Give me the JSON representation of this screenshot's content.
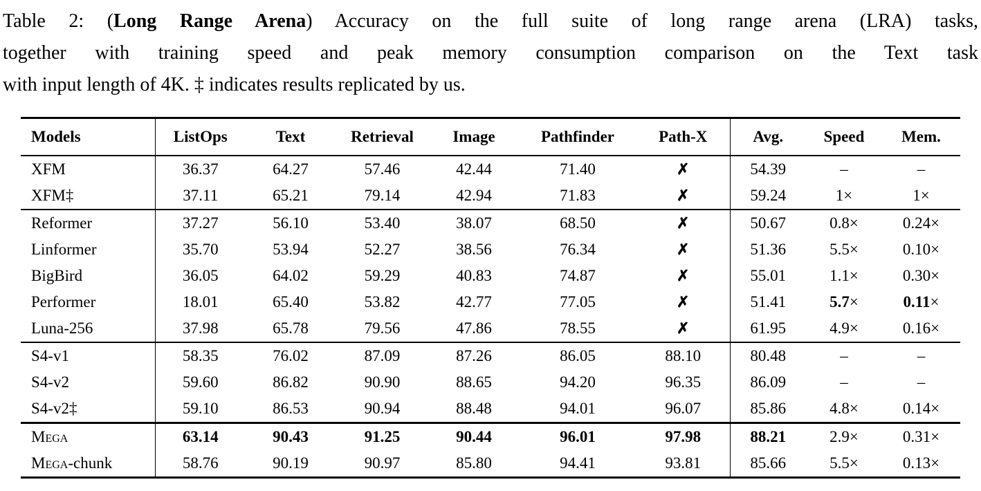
{
  "caption": {
    "line1_pre": "Table 2: (",
    "line1_bold": "Long Range Arena",
    "line1_post": ") Accuracy on the full suite of long range arena (LRA) tasks,",
    "line2": "together with training speed and peak memory consumption comparison on the Text task",
    "line3": "with input length of 4K. ‡ indicates results replicated by us."
  },
  "table": {
    "columns": [
      {
        "key": "models",
        "label": "Models"
      },
      {
        "key": "listops",
        "label": "ListOps"
      },
      {
        "key": "text",
        "label": "Text"
      },
      {
        "key": "retrieval",
        "label": "Retrieval"
      },
      {
        "key": "image",
        "label": "Image"
      },
      {
        "key": "pathfinder",
        "label": "Pathfinder"
      },
      {
        "key": "pathx",
        "label": "Path-X"
      },
      {
        "key": "avg",
        "label": "Avg."
      },
      {
        "key": "speed",
        "label": "Speed"
      },
      {
        "key": "mem",
        "label": "Mem."
      }
    ],
    "cross_mark": "✗",
    "dash_mark": "–",
    "groups": [
      {
        "rows": [
          {
            "model": "XFM",
            "sc": false,
            "suffix": "",
            "cells": [
              "36.37",
              "64.27",
              "57.46",
              "42.44",
              "71.40",
              "✗",
              "54.39",
              "–",
              "–"
            ],
            "bold": []
          },
          {
            "model": "XFM‡",
            "sc": false,
            "suffix": "",
            "cells": [
              "37.11",
              "65.21",
              "79.14",
              "42.94",
              "71.83",
              "✗",
              "59.24",
              "1×",
              "1×"
            ],
            "bold": []
          }
        ]
      },
      {
        "rows": [
          {
            "model": "Reformer",
            "sc": false,
            "suffix": "",
            "cells": [
              "37.27",
              "56.10",
              "53.40",
              "38.07",
              "68.50",
              "✗",
              "50.67",
              "0.8×",
              "0.24×"
            ],
            "bold": []
          },
          {
            "model": "Linformer",
            "sc": false,
            "suffix": "",
            "cells": [
              "35.70",
              "53.94",
              "52.27",
              "38.56",
              "76.34",
              "✗",
              "51.36",
              "5.5×",
              "0.10×"
            ],
            "bold": []
          },
          {
            "model": "BigBird",
            "sc": false,
            "suffix": "",
            "cells": [
              "36.05",
              "64.02",
              "59.29",
              "40.83",
              "74.87",
              "✗",
              "55.01",
              "1.1×",
              "0.30×"
            ],
            "bold": []
          },
          {
            "model": "Performer",
            "sc": false,
            "suffix": "",
            "cells": [
              "18.01",
              "65.40",
              "53.82",
              "42.77",
              "77.05",
              "✗",
              "51.41",
              "5.7×",
              "0.11×"
            ],
            "bold": [
              7,
              8
            ]
          },
          {
            "model": "Luna-256",
            "sc": false,
            "suffix": "",
            "cells": [
              "37.98",
              "65.78",
              "79.56",
              "47.86",
              "78.55",
              "✗",
              "61.95",
              "4.9×",
              "0.16×"
            ],
            "bold": []
          }
        ]
      },
      {
        "rows": [
          {
            "model": "S4-v1",
            "sc": false,
            "suffix": "",
            "cells": [
              "58.35",
              "76.02",
              "87.09",
              "87.26",
              "86.05",
              "88.10",
              "80.48",
              "–",
              "–"
            ],
            "bold": []
          },
          {
            "model": "S4-v2",
            "sc": false,
            "suffix": "",
            "cells": [
              "59.60",
              "86.82",
              "90.90",
              "88.65",
              "94.20",
              "96.35",
              "86.09",
              "–",
              "–"
            ],
            "bold": []
          },
          {
            "model": "S4-v2‡",
            "sc": false,
            "suffix": "",
            "cells": [
              "59.10",
              "86.53",
              "90.94",
              "88.48",
              "94.01",
              "96.07",
              "85.86",
              "4.8×",
              "0.14×"
            ],
            "bold": []
          }
        ]
      },
      {
        "rows": [
          {
            "model": "Mega",
            "sc": true,
            "suffix": "",
            "cells": [
              "63.14",
              "90.43",
              "91.25",
              "90.44",
              "96.01",
              "97.98",
              "88.21",
              "2.9×",
              "0.31×"
            ],
            "bold": [
              0,
              1,
              2,
              3,
              4,
              5,
              6
            ]
          },
          {
            "model": "Mega",
            "sc": true,
            "suffix": "-chunk",
            "cells": [
              "58.76",
              "90.19",
              "90.97",
              "85.80",
              "94.41",
              "93.81",
              "85.66",
              "5.5×",
              "0.13×"
            ],
            "bold": []
          }
        ]
      }
    ]
  }
}
